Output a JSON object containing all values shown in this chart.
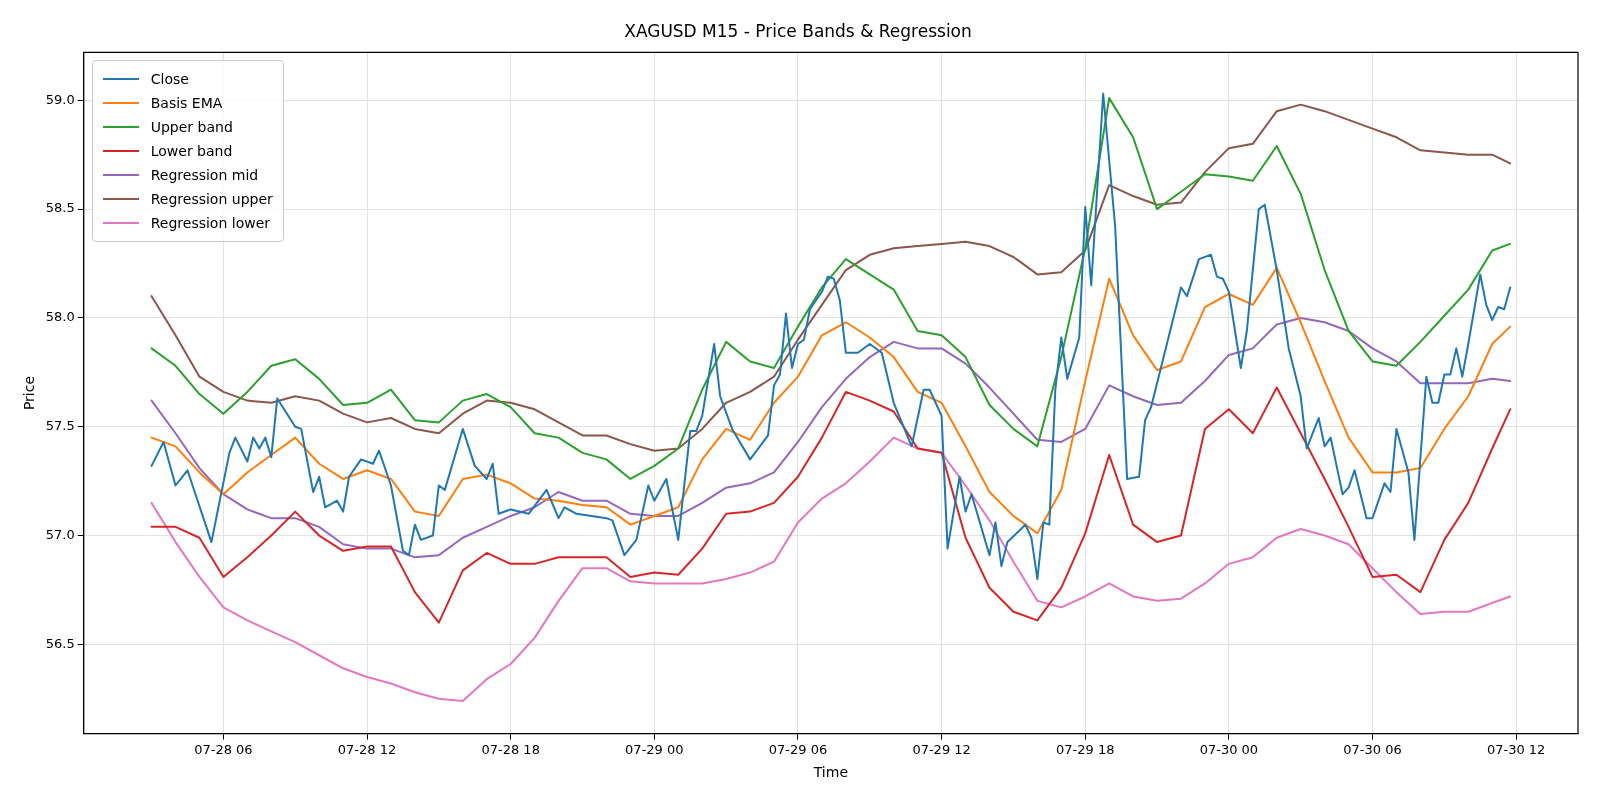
{
  "chart_data": {
    "type": "line",
    "title": "XAGUSD M15 - Price Bands & Regression",
    "xlabel": "Time",
    "ylabel": "Price",
    "xlim": [
      "--07-28T00:10",
      "--07-30T14:35"
    ],
    "xticks": [
      {
        "value": "--07-28T06:00",
        "label": "07-28 06"
      },
      {
        "value": "--07-28T12:00",
        "label": "07-28 12"
      },
      {
        "value": "--07-28T18:00",
        "label": "07-28 18"
      },
      {
        "value": "--07-29T00:00",
        "label": "07-29 00"
      },
      {
        "value": "--07-29T06:00",
        "label": "07-29 06"
      },
      {
        "value": "--07-29T12:00",
        "label": "07-29 12"
      },
      {
        "value": "--07-29T18:00",
        "label": "07-29 18"
      },
      {
        "value": "--07-30T00:00",
        "label": "07-30 00"
      },
      {
        "value": "--07-30T06:00",
        "label": "07-30 06"
      },
      {
        "value": "--07-30T12:00",
        "label": "07-30 12"
      }
    ],
    "ylim": [
      56.09,
      59.22
    ],
    "yticks": [
      {
        "value": 56.5,
        "label": "56.5"
      },
      {
        "value": 57,
        "label": "57.0"
      },
      {
        "value": 57.5,
        "label": "57.5"
      },
      {
        "value": 58,
        "label": "58.0"
      },
      {
        "value": 58.5,
        "label": "58.5"
      },
      {
        "value": 59,
        "label": "59.0"
      }
    ],
    "grid": true,
    "legend": "top left",
    "x": [
      "--07-28T03:00",
      "--07-28T04:00",
      "--07-28T05:00",
      "--07-28T06:00",
      "--07-28T07:00",
      "--07-28T08:00",
      "--07-28T09:00",
      "--07-28T10:00",
      "--07-28T11:00",
      "--07-28T12:00",
      "--07-28T13:00",
      "--07-28T14:00",
      "--07-28T15:00",
      "--07-28T16:00",
      "--07-28T17:00",
      "--07-28T18:00",
      "--07-28T19:00",
      "--07-28T20:00",
      "--07-28T21:00",
      "--07-28T22:00",
      "--07-28T23:00",
      "--07-29T00:00",
      "--07-29T01:00",
      "--07-29T02:00",
      "--07-29T03:00",
      "--07-29T04:00",
      "--07-29T05:00",
      "--07-29T06:00",
      "--07-29T07:00",
      "--07-29T08:00",
      "--07-29T09:00",
      "--07-29T10:00",
      "--07-29T11:00",
      "--07-29T12:00",
      "--07-29T13:00",
      "--07-29T14:00",
      "--07-29T15:00",
      "--07-29T16:00",
      "--07-29T17:00",
      "--07-29T18:00",
      "--07-29T19:00",
      "--07-29T20:00",
      "--07-29T21:00",
      "--07-29T22:00",
      "--07-29T23:00",
      "--07-30T00:00",
      "--07-30T01:00",
      "--07-30T02:00",
      "--07-30T03:00",
      "--07-30T04:00",
      "--07-30T05:00",
      "--07-30T06:00",
      "--07-30T07:00",
      "--07-30T08:00",
      "--07-30T09:00",
      "--07-30T10:00",
      "--07-30T11:00",
      "--07-30T11:45"
    ],
    "series": [
      {
        "name": "Close",
        "color": "#1f77b4",
        "x": [
          "--07-28T03:00",
          "--07-28T03:30",
          "--07-28T04:00",
          "--07-28T04:30",
          "--07-28T05:30",
          "--07-28T06:15",
          "--07-28T06:30",
          "--07-28T07:00",
          "--07-28T07:15",
          "--07-28T07:30",
          "--07-28T07:45",
          "--07-28T08:00",
          "--07-28T08:15",
          "--07-28T09:00",
          "--07-28T09:15",
          "--07-28T09:45",
          "--07-28T10:00",
          "--07-28T10:15",
          "--07-28T10:45",
          "--07-28T11:00",
          "--07-28T11:15",
          "--07-28T11:45",
          "--07-28T12:15",
          "--07-28T12:30",
          "--07-28T13:00",
          "--07-28T13:30",
          "--07-28T13:45",
          "--07-28T14:00",
          "--07-28T14:15",
          "--07-28T14:45",
          "--07-28T15:00",
          "--07-28T15:15",
          "--07-28T16:00",
          "--07-28T16:30",
          "--07-28T17:00",
          "--07-28T17:15",
          "--07-28T17:30",
          "--07-28T18:00",
          "--07-28T18:45",
          "--07-28T19:30",
          "--07-28T20:00",
          "--07-28T20:15",
          "--07-28T20:45",
          "--07-28T22:00",
          "--07-28T22:15",
          "--07-28T22:45",
          "--07-28T23:15",
          "--07-28T23:45",
          "--07-29T00:00",
          "--07-29T00:30",
          "--07-29T01:00",
          "--07-29T01:30",
          "--07-29T01:45",
          "--07-29T02:00",
          "--07-29T02:30",
          "--07-29T02:45",
          "--07-29T03:15",
          "--07-29T04:00",
          "--07-29T04:45",
          "--07-29T05:00",
          "--07-29T05:15",
          "--07-29T05:30",
          "--07-29T05:45",
          "--07-29T06:00",
          "--07-29T06:15",
          "--07-29T06:30",
          "--07-29T07:00",
          "--07-29T07:15",
          "--07-29T07:30",
          "--07-29T07:45",
          "--07-29T08:00",
          "--07-29T08:30",
          "--07-29T09:00",
          "--07-29T09:30",
          "--07-29T10:00",
          "--07-29T10:45",
          "--07-29T11:15",
          "--07-29T11:30",
          "--07-29T12:00",
          "--07-29T12:15",
          "--07-29T12:45",
          "--07-29T13:00",
          "--07-29T13:15",
          "--07-29T14:00",
          "--07-29T14:15",
          "--07-29T14:30",
          "--07-29T14:45",
          "--07-29T15:30",
          "--07-29T15:45",
          "--07-29T16:00",
          "--07-29T16:15",
          "--07-29T16:30",
          "--07-29T16:45",
          "--07-29T17:00",
          "--07-29T17:15",
          "--07-29T17:45",
          "--07-29T18:00",
          "--07-29T18:15",
          "--07-29T18:45",
          "--07-29T19:15",
          "--07-29T19:45",
          "--07-29T20:15",
          "--07-29T20:30",
          "--07-29T20:45",
          "--07-29T22:00",
          "--07-29T22:15",
          "--07-29T22:45",
          "--07-29T23:15",
          "--07-29T23:30",
          "--07-29T23:45",
          "--07-30T00:00",
          "--07-30T00:30",
          "--07-30T00:45",
          "--07-30T01:15",
          "--07-30T01:30",
          "--07-30T02:00",
          "--07-30T02:30",
          "--07-30T03:00",
          "--07-30T03:15",
          "--07-30T03:45",
          "--07-30T04:00",
          "--07-30T04:15",
          "--07-30T04:45",
          "--07-30T05:00",
          "--07-30T05:15",
          "--07-30T05:45",
          "--07-30T06:00",
          "--07-30T06:30",
          "--07-30T06:45",
          "--07-30T07:00",
          "--07-30T07:30",
          "--07-30T07:45",
          "--07-30T08:15",
          "--07-30T08:30",
          "--07-30T08:45",
          "--07-30T09:00",
          "--07-30T09:15",
          "--07-30T09:30",
          "--07-30T09:45",
          "--07-30T10:00",
          "--07-30T10:30",
          "--07-30T10:45",
          "--07-30T11:00",
          "--07-30T11:15",
          "--07-30T11:30",
          "--07-30T11:45"
        ],
        "values": [
          57.32,
          57.43,
          57.23,
          57.3,
          56.97,
          57.38,
          57.45,
          57.34,
          57.45,
          57.4,
          57.45,
          57.36,
          57.63,
          57.5,
          57.49,
          57.2,
          57.27,
          57.13,
          57.16,
          57.11,
          57.27,
          57.35,
          57.33,
          57.39,
          57.23,
          56.93,
          56.91,
          57.05,
          56.98,
          57.0,
          57.23,
          57.21,
          57.49,
          57.32,
          57.26,
          57.33,
          57.1,
          57.12,
          57.1,
          57.21,
          57.08,
          57.13,
          57.1,
          57.08,
          57.07,
          56.91,
          56.98,
          57.23,
          57.16,
          57.26,
          56.98,
          57.48,
          57.48,
          57.55,
          57.88,
          57.64,
          57.49,
          57.35,
          57.46,
          57.69,
          57.74,
          58.02,
          57.77,
          57.88,
          57.9,
          58.04,
          58.12,
          58.19,
          58.18,
          58.08,
          57.84,
          57.84,
          57.88,
          57.84,
          57.61,
          57.41,
          57.67,
          57.67,
          57.55,
          56.94,
          57.27,
          57.11,
          57.19,
          56.91,
          57.06,
          56.86,
          56.97,
          57.05,
          56.99,
          56.8,
          57.06,
          57.05,
          57.67,
          57.91,
          57.72,
          57.91,
          58.51,
          58.15,
          59.03,
          58.42,
          57.26,
          57.27,
          57.53,
          57.59,
          58.14,
          58.1,
          58.27,
          58.29,
          58.19,
          58.18,
          58.12,
          57.77,
          57.94,
          58.5,
          58.52,
          58.22,
          57.86,
          57.64,
          57.4,
          57.54,
          57.41,
          57.45,
          57.19,
          57.22,
          57.3,
          57.08,
          57.08,
          57.24,
          57.2,
          57.49,
          57.29,
          56.98,
          57.73,
          57.61,
          57.61,
          57.74,
          57.74,
          57.86,
          57.73,
          57.88,
          58.2,
          58.06,
          57.99,
          58.05,
          58.04,
          58.14
        ]
      },
      {
        "name": "Basis EMA",
        "color": "#ff7f0e",
        "values": [
          57.45,
          57.41,
          57.29,
          57.19,
          57.29,
          57.37,
          57.45,
          57.33,
          57.26,
          57.3,
          57.26,
          57.11,
          57.09,
          57.26,
          57.28,
          57.24,
          57.17,
          57.16,
          57.14,
          57.13,
          57.05,
          57.09,
          57.13,
          57.35,
          57.49,
          57.44,
          57.61,
          57.73,
          57.92,
          57.98,
          57.91,
          57.82,
          57.66,
          57.61,
          57.41,
          57.2,
          57.09,
          57.01,
          57.21,
          57.71,
          58.18,
          57.92,
          57.76,
          57.8,
          58.05,
          58.11,
          58.06,
          58.23,
          57.98,
          57.71,
          57.45,
          57.29,
          57.29,
          57.31,
          57.49,
          57.64,
          57.88,
          57.96
        ]
      },
      {
        "name": "Upper band",
        "color": "#2ca02c",
        "values": [
          57.86,
          57.78,
          57.65,
          57.56,
          57.66,
          57.78,
          57.81,
          57.72,
          57.6,
          57.61,
          57.67,
          57.53,
          57.52,
          57.62,
          57.65,
          57.59,
          57.47,
          57.45,
          57.38,
          57.35,
          57.26,
          57.32,
          57.4,
          57.67,
          57.89,
          57.8,
          57.77,
          57.96,
          58.14,
          58.27,
          58.2,
          58.13,
          57.94,
          57.92,
          57.82,
          57.6,
          57.49,
          57.41,
          57.82,
          58.32,
          59.01,
          58.83,
          58.5,
          58.58,
          58.66,
          58.65,
          58.63,
          58.79,
          58.57,
          58.22,
          57.94,
          57.8,
          57.78,
          57.89,
          58.01,
          58.13,
          58.31,
          58.34
        ]
      },
      {
        "name": "Lower band",
        "color": "#d62728",
        "values": [
          57.04,
          57.04,
          56.99,
          56.81,
          56.9,
          57.0,
          57.11,
          57.0,
          56.93,
          56.95,
          56.95,
          56.74,
          56.6,
          56.84,
          56.92,
          56.87,
          56.87,
          56.9,
          56.9,
          56.9,
          56.81,
          56.83,
          56.82,
          56.94,
          57.1,
          57.11,
          57.15,
          57.27,
          57.45,
          57.66,
          57.62,
          57.57,
          57.4,
          57.38,
          56.99,
          56.76,
          56.65,
          56.61,
          56.76,
          57.01,
          57.37,
          57.05,
          56.97,
          57.0,
          57.49,
          57.58,
          57.47,
          57.68,
          57.47,
          57.26,
          57.04,
          56.81,
          56.82,
          56.74,
          56.98,
          57.15,
          57.4,
          57.58
        ]
      },
      {
        "name": "Regression mid",
        "color": "#9467bd",
        "values": [
          57.62,
          57.47,
          57.31,
          57.19,
          57.12,
          57.08,
          57.08,
          57.04,
          56.96,
          56.94,
          56.94,
          56.9,
          56.91,
          56.99,
          57.04,
          57.09,
          57.13,
          57.2,
          57.16,
          57.16,
          57.1,
          57.09,
          57.09,
          57.15,
          57.22,
          57.24,
          57.29,
          57.43,
          57.59,
          57.72,
          57.82,
          57.89,
          57.86,
          57.86,
          57.79,
          57.68,
          57.56,
          57.44,
          57.43,
          57.49,
          57.69,
          57.64,
          57.6,
          57.61,
          57.71,
          57.83,
          57.86,
          57.97,
          58.0,
          57.98,
          57.94,
          57.86,
          57.8,
          57.7,
          57.7,
          57.7,
          57.72,
          57.71
        ]
      },
      {
        "name": "Regression upper",
        "color": "#8c564b",
        "values": [
          58.1,
          57.92,
          57.73,
          57.66,
          57.62,
          57.61,
          57.64,
          57.62,
          57.56,
          57.52,
          57.54,
          57.49,
          57.47,
          57.56,
          57.62,
          57.61,
          57.58,
          57.52,
          57.46,
          57.46,
          57.42,
          57.39,
          57.4,
          57.49,
          57.61,
          57.66,
          57.73,
          57.9,
          58.06,
          58.22,
          58.29,
          58.32,
          58.33,
          58.34,
          58.35,
          58.33,
          58.28,
          58.2,
          58.21,
          58.31,
          58.61,
          58.56,
          58.52,
          58.53,
          58.67,
          58.78,
          58.8,
          58.95,
          58.98,
          58.95,
          58.91,
          58.87,
          58.83,
          58.77,
          58.76,
          58.75,
          58.75,
          58.71
        ]
      },
      {
        "name": "Regression lower",
        "color": "#e377c2",
        "values": [
          57.15,
          56.97,
          56.81,
          56.67,
          56.61,
          56.56,
          56.51,
          56.45,
          56.39,
          56.35,
          56.32,
          56.28,
          56.25,
          56.24,
          56.34,
          56.41,
          56.53,
          56.7,
          56.85,
          56.85,
          56.79,
          56.78,
          56.78,
          56.78,
          56.8,
          56.83,
          56.88,
          57.06,
          57.17,
          57.24,
          57.34,
          57.45,
          57.4,
          57.38,
          57.23,
          57.07,
          56.88,
          56.7,
          56.67,
          56.72,
          56.78,
          56.72,
          56.7,
          56.71,
          56.78,
          56.87,
          56.9,
          56.99,
          57.03,
          57.0,
          56.96,
          56.85,
          56.74,
          56.64,
          56.65,
          56.65,
          56.69,
          56.72
        ]
      }
    ]
  }
}
